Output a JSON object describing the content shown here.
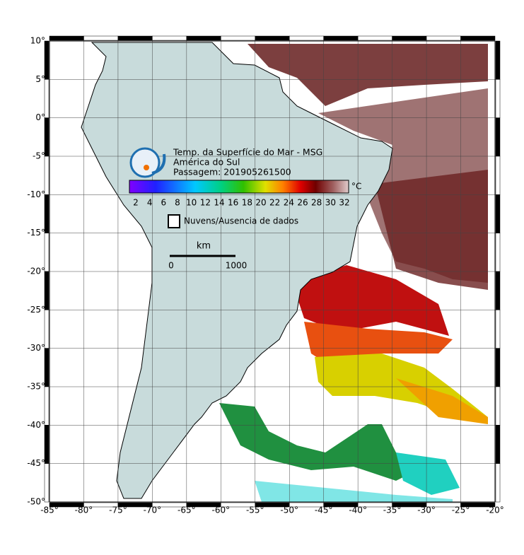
{
  "header": {
    "title": "Temp. da Superfície do Mar - MSG",
    "region": "América do Sul",
    "pass": "Passagem: 201905261500"
  },
  "colorbar": {
    "labels": [
      "2",
      "4",
      "6",
      "8",
      "10",
      "12",
      "14",
      "16",
      "18",
      "20",
      "22",
      "24",
      "26",
      "28",
      "30",
      "32"
    ],
    "unit": "°C"
  },
  "legend": {
    "clouds": "Nuvens/Ausencia de dados"
  },
  "scale": {
    "unit": "km",
    "start": "0",
    "end": "1000"
  },
  "axes": {
    "lat_labels": [
      "10°",
      "5°",
      "0°",
      "-5°",
      "-10°",
      "-15°",
      "-20°",
      "-25°",
      "-30°",
      "-35°",
      "-40°",
      "-45°",
      "-50°"
    ],
    "lon_labels": [
      "-85°",
      "-80°",
      "-75°",
      "-70°",
      "-65°",
      "-60°",
      "-55°",
      "-50°",
      "-45°",
      "-40°",
      "-35°",
      "-30°",
      "-25°",
      "-20°"
    ]
  }
}
